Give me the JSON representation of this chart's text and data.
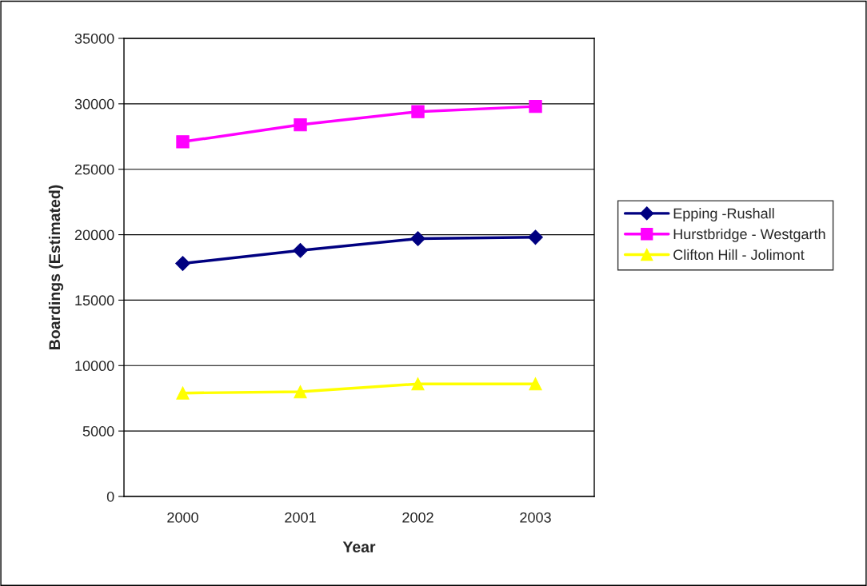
{
  "chart_data": {
    "type": "line",
    "xlabel": "Year",
    "ylabel": "Boardings (Estimated)",
    "categories": [
      "2000",
      "2001",
      "2002",
      "2003"
    ],
    "series": [
      {
        "name": "Epping -Rushall",
        "color": "#000080",
        "values": [
          17800,
          18800,
          19700,
          19800
        ],
        "marker": "diamond"
      },
      {
        "name": "Hurstbridge - Westgarth",
        "color": "#ff00ff",
        "values": [
          27100,
          28400,
          29400,
          29800
        ],
        "marker": "square"
      },
      {
        "name": "Clifton Hill - Jolimont",
        "color": "#ffff00",
        "values": [
          7900,
          8000,
          8600,
          8600
        ],
        "marker": "triangle"
      }
    ],
    "ylim": [
      0,
      35000
    ],
    "yticks": [
      0,
      5000,
      10000,
      15000,
      20000,
      25000,
      30000,
      35000
    ],
    "grid": "y",
    "legend": "right",
    "line_style": "solid"
  }
}
